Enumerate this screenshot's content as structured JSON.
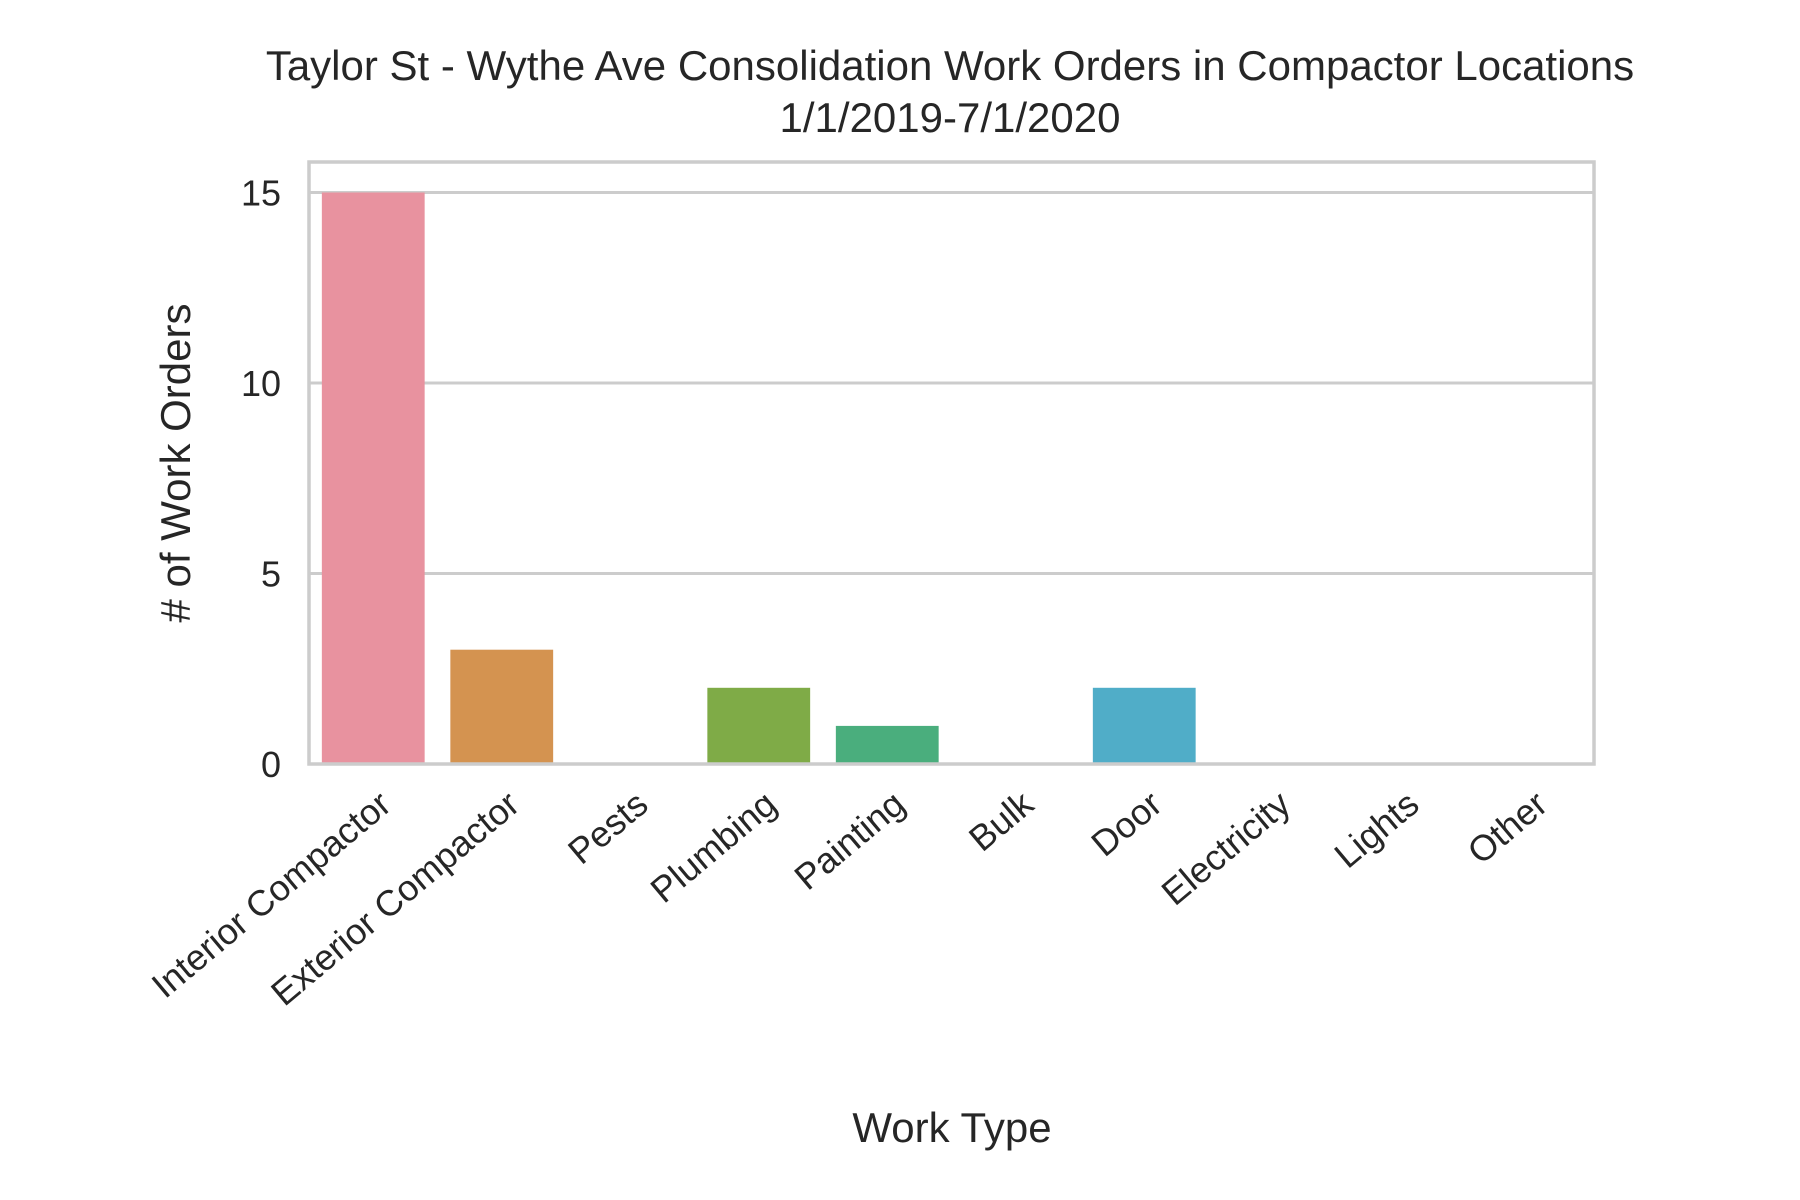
{
  "chart_data": {
    "type": "bar",
    "title": "Taylor St - Wythe Ave Consolidation Work Orders in Compactor Locations",
    "subtitle": "1/1/2019-7/1/2020",
    "xlabel": "Work Type",
    "ylabel": "# of Work Orders",
    "categories": [
      "Interior Compactor",
      "Exterior Compactor",
      "Pests",
      "Plumbing",
      "Painting",
      "Bulk",
      "Door",
      "Electricity",
      "Lights",
      "Other"
    ],
    "values": [
      15,
      3,
      0,
      2,
      1,
      0,
      2,
      0,
      0,
      0
    ],
    "colors": [
      "#e8929f",
      "#d49350",
      "#b5a03a",
      "#7fab47",
      "#4aae7d",
      "#4aaa9d",
      "#50adc8",
      "#7e9fe0",
      "#c38ae8",
      "#e88ac8"
    ],
    "ylim": [
      0,
      15.8
    ],
    "yticks": [
      0,
      5,
      10,
      15
    ],
    "grid": true,
    "legend": "none"
  }
}
